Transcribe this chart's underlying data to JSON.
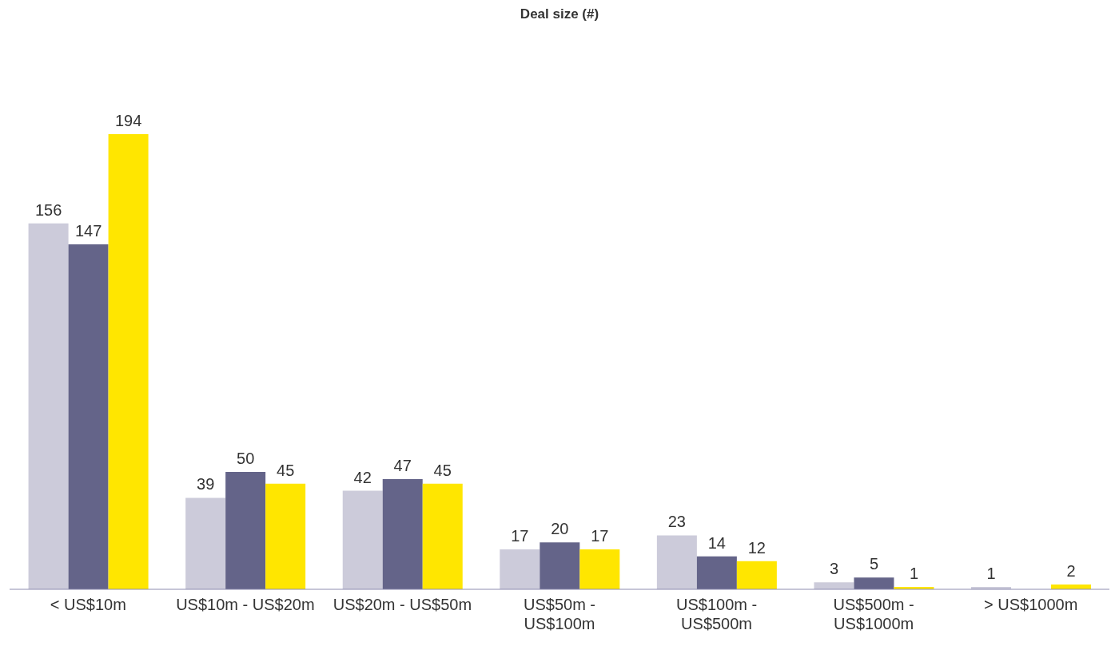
{
  "chart_data": {
    "type": "bar",
    "title": "Deal size (#)",
    "categories": [
      "< US$10m",
      "US$10m - US$20m",
      "US$20m - US$50m",
      "US$50m - US$100m",
      "US$100m - US$500m",
      "US$500m - US$1000m",
      "> US$1000m"
    ],
    "series": [
      {
        "color": "#cccbda",
        "values": [
          156,
          39,
          42,
          17,
          23,
          3,
          1
        ]
      },
      {
        "color": "#646489",
        "values": [
          147,
          50,
          47,
          20,
          14,
          5,
          null
        ]
      },
      {
        "color": "#ffe600",
        "values": [
          194,
          45,
          45,
          17,
          12,
          1,
          2
        ]
      }
    ],
    "data_labels": true,
    "grid": false,
    "legend": false
  }
}
